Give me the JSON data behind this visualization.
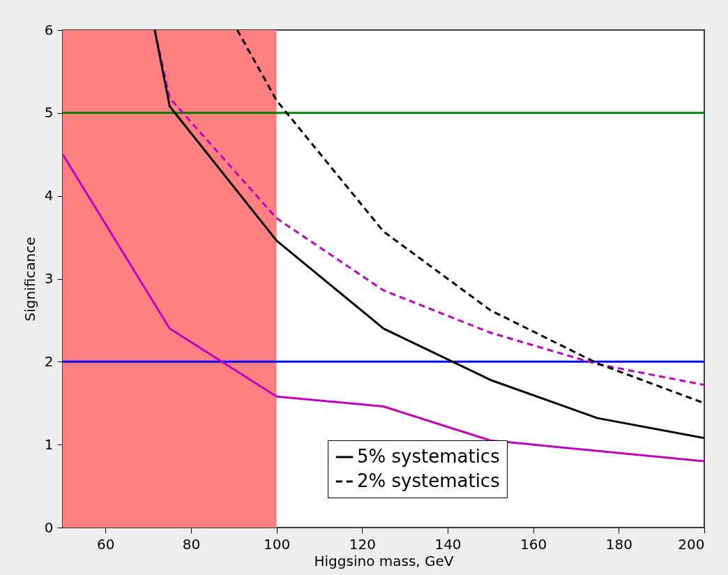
{
  "chart_data": {
    "type": "line",
    "xlabel": "Higgsino mass, GeV",
    "ylabel": "Significance",
    "xlim": [
      50,
      200
    ],
    "ylim": [
      0,
      6
    ],
    "xticks": [
      60,
      80,
      100,
      120,
      140,
      160,
      180,
      200
    ],
    "yticks": [
      0,
      1,
      2,
      3,
      4,
      5,
      6
    ],
    "series": [
      {
        "name": "5% systematics",
        "color": "#000000",
        "line_style": "solid",
        "x": [
          71.5,
          75,
          100,
          125,
          150,
          175,
          200
        ],
        "values": [
          6,
          5.08,
          3.46,
          2.4,
          1.78,
          1.32,
          1.08
        ]
      },
      {
        "name": "2% systematics",
        "color": "#000000",
        "line_style": "dashed",
        "x": [
          90.8,
          100,
          125,
          150,
          175,
          200
        ],
        "values": [
          6,
          5.15,
          3.57,
          2.62,
          1.98,
          1.5
        ]
      },
      {
        "color": "#bf00bf",
        "line_style": "dashed",
        "x": [
          71.5,
          75,
          100,
          125,
          150,
          175,
          200
        ],
        "values": [
          6,
          5.18,
          3.73,
          2.86,
          2.35,
          1.97,
          1.72
        ]
      },
      {
        "color": "#bf00bf",
        "line_style": "solid",
        "x": [
          50,
          75,
          100,
          125,
          150,
          200
        ],
        "values": [
          4.5,
          2.4,
          1.58,
          1.46,
          1.05,
          0.8
        ]
      }
    ],
    "ref_lines": [
      {
        "axis": "y",
        "value": 5,
        "color": "#007f00"
      },
      {
        "axis": "y",
        "value": 2,
        "color": "#0000ff"
      }
    ],
    "bands": [
      {
        "axis": "x",
        "from": 50,
        "to": 100,
        "color": "#ff8080"
      }
    ],
    "grid": false,
    "legend": "bottom"
  }
}
